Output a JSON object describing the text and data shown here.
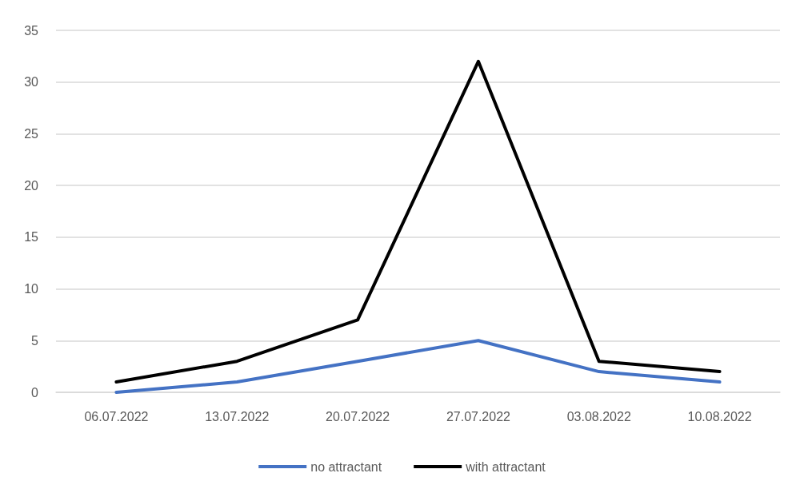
{
  "chart_data": {
    "type": "line",
    "categories": [
      "06.07.2022",
      "13.07.2022",
      "20.07.2022",
      "27.07.2022",
      "03.08.2022",
      "10.08.2022"
    ],
    "series": [
      {
        "name": "no attractant",
        "color": "#4472c4",
        "values": [
          0,
          1,
          3,
          5,
          2,
          1
        ]
      },
      {
        "name": "with attractant",
        "color": "#000000",
        "values": [
          1,
          3,
          7,
          32,
          3,
          2
        ]
      }
    ],
    "ylim": [
      0,
      35
    ],
    "yticks": [
      0,
      5,
      10,
      15,
      20,
      25,
      30,
      35
    ],
    "grid": "y",
    "legend": "bottom",
    "marker": "none",
    "line_style": "solid"
  }
}
